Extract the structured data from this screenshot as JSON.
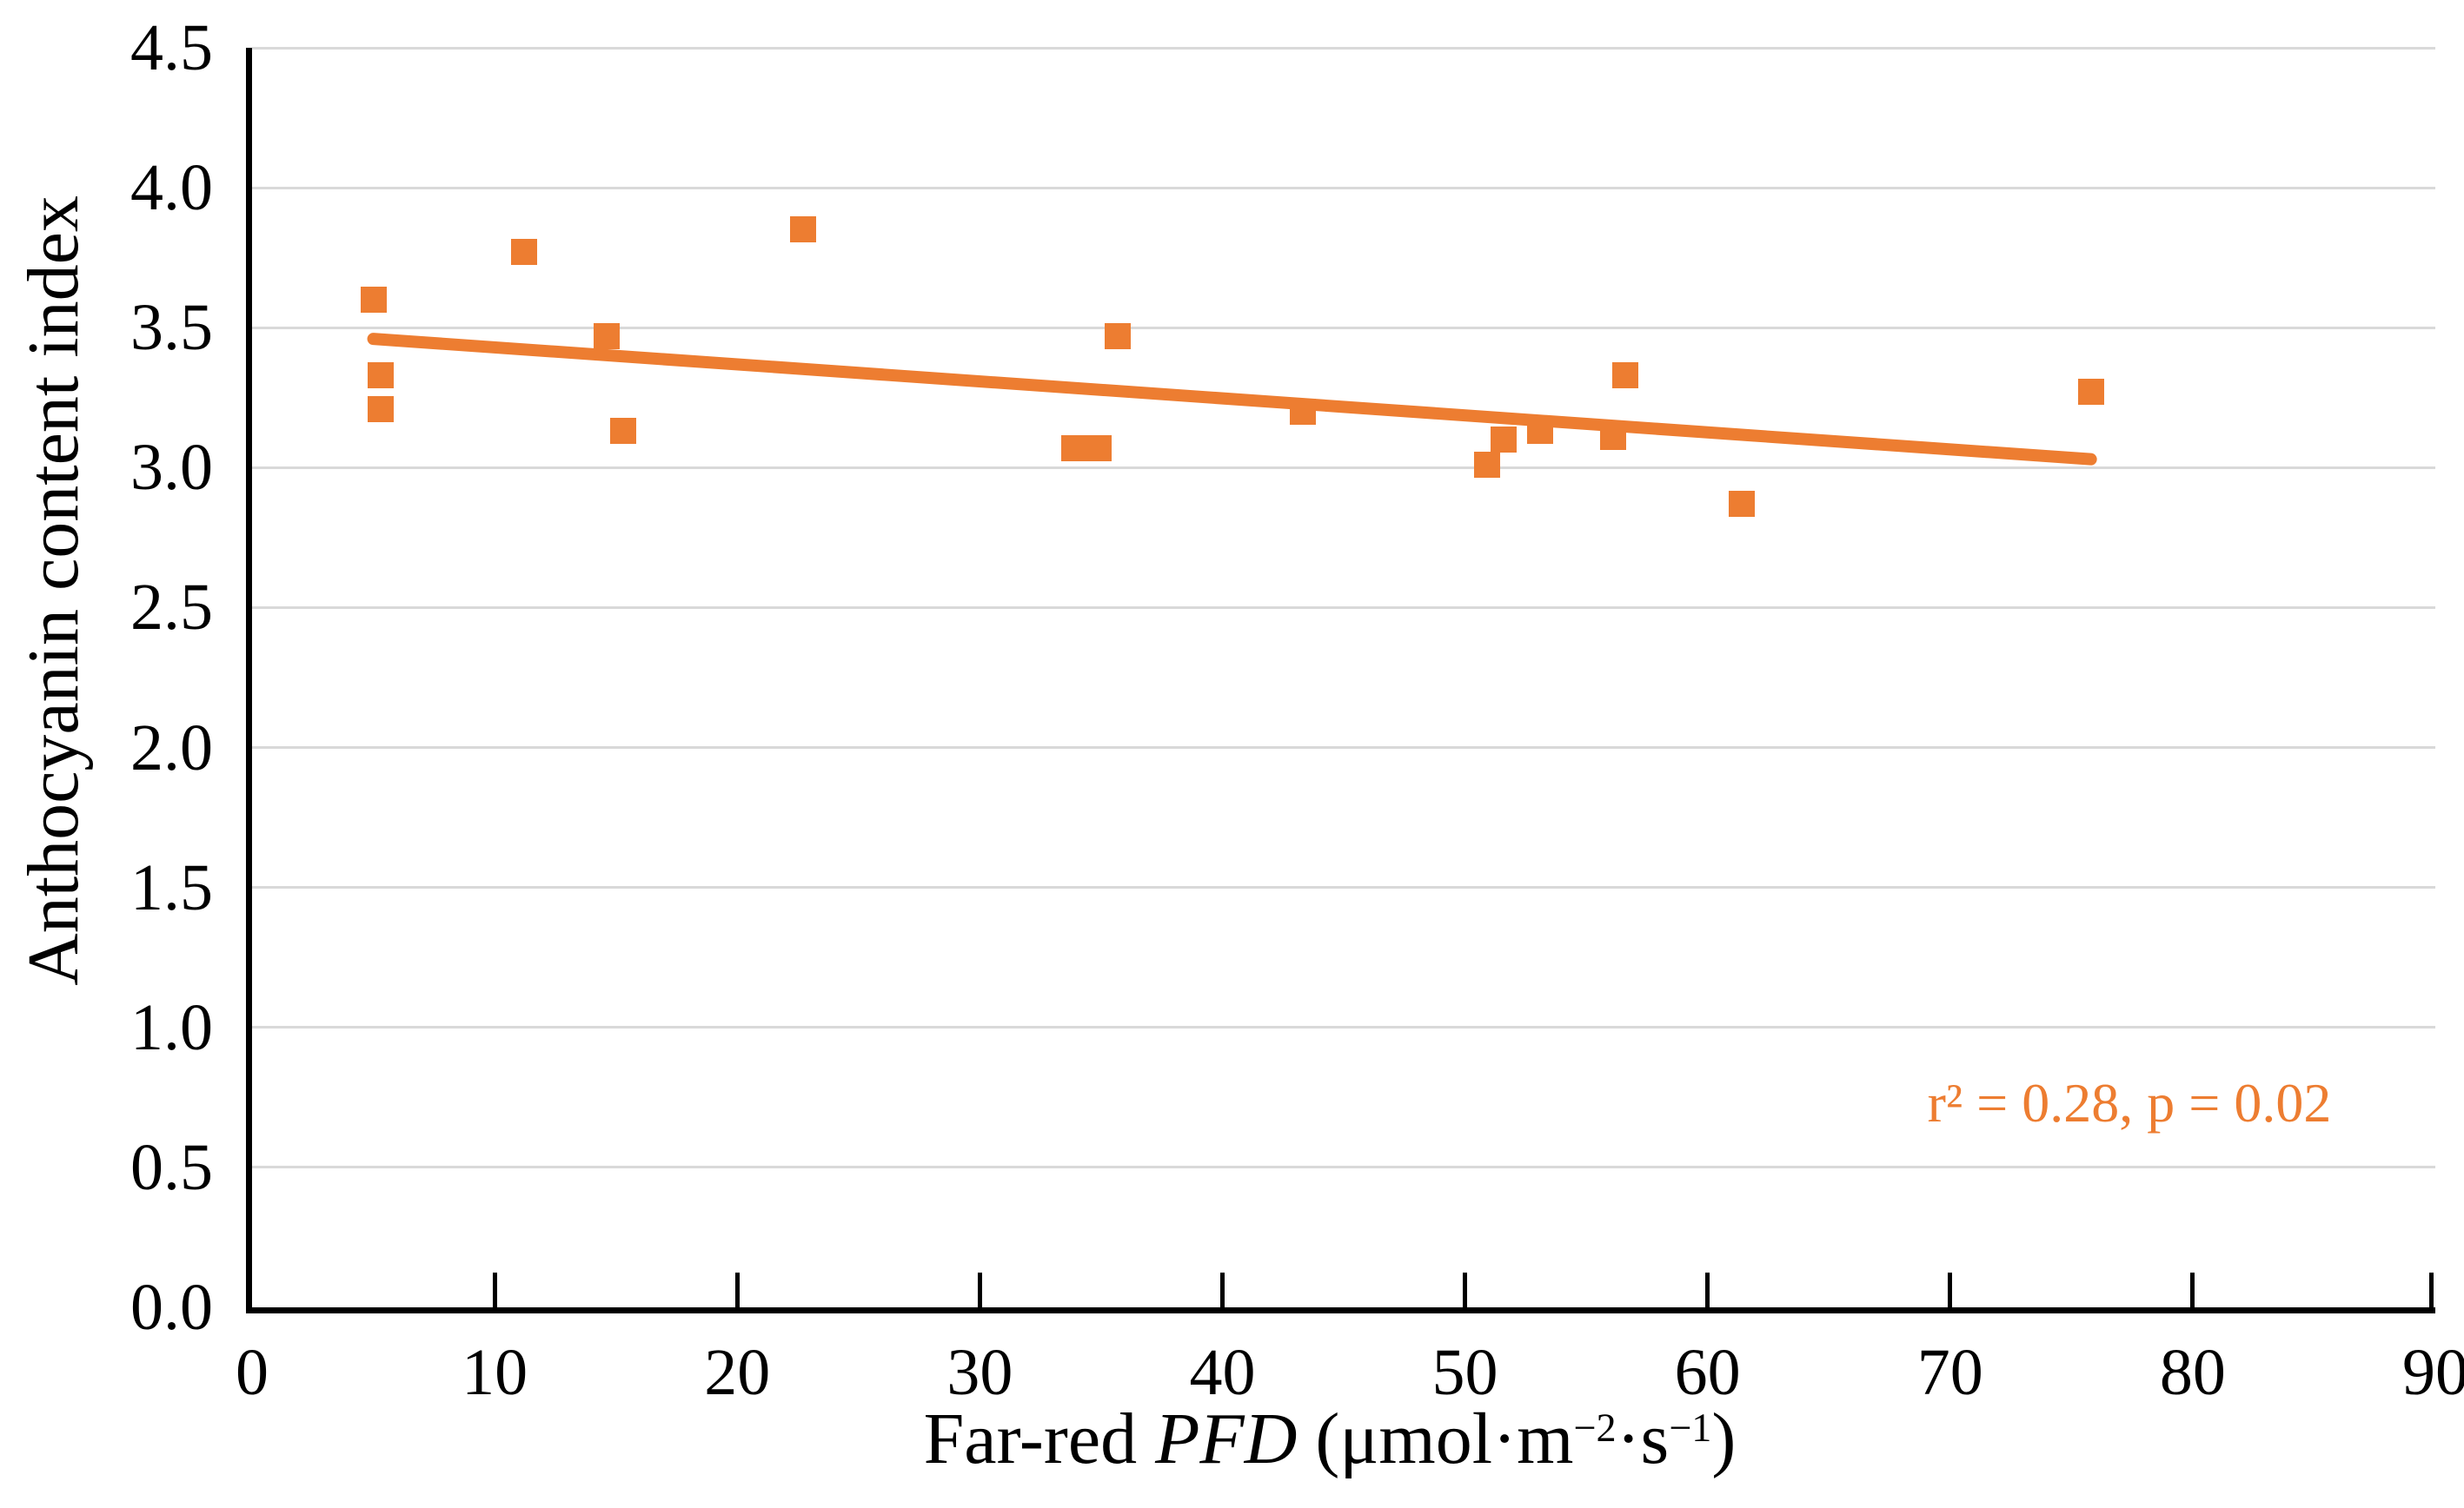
{
  "figure": {
    "background_color": "#ffffff",
    "accent_color": "#ED7D31",
    "gridline_color": "#D9D9D9",
    "axis_color": "#000000",
    "y_title": "Anthocyanin  content  index",
    "x_title_parts": {
      "prefix": "Far-red ",
      "italic": "PFD",
      "unit_open": " (μmol·m",
      "sup_1": "−2",
      "unit_mid": "·s",
      "sup_2": "−1",
      "unit_close": ")"
    },
    "annotation_text": "r² = 0.28, p = 0.02"
  },
  "chart_data": {
    "type": "scatter",
    "title": "",
    "xlabel": "Far-red PFD (μmol·m−2·s−1)",
    "ylabel": "Anthocyanin content index",
    "xlim": [
      0,
      90
    ],
    "ylim": [
      0,
      4.5
    ],
    "x_ticks": [
      0,
      10,
      20,
      30,
      40,
      50,
      60,
      70,
      80,
      90
    ],
    "y_ticks": [
      "0.0",
      "0.5",
      "1.0",
      "1.5",
      "2.0",
      "2.5",
      "3.0",
      "3.5",
      "4.0",
      "4.5"
    ],
    "grid": "horizontal-only",
    "legend": "none",
    "marker_shape": "square",
    "marker_color": "#ED7D31",
    "points": [
      {
        "x": 5.0,
        "y": 3.6
      },
      {
        "x": 5.3,
        "y": 3.33
      },
      {
        "x": 5.3,
        "y": 3.21
      },
      {
        "x": 11.2,
        "y": 3.77
      },
      {
        "x": 14.6,
        "y": 3.47
      },
      {
        "x": 15.3,
        "y": 3.13
      },
      {
        "x": 22.7,
        "y": 3.85
      },
      {
        "x": 33.9,
        "y": 3.07
      },
      {
        "x": 34.9,
        "y": 3.07
      },
      {
        "x": 35.7,
        "y": 3.47
      },
      {
        "x": 43.3,
        "y": 3.2
      },
      {
        "x": 50.9,
        "y": 3.01
      },
      {
        "x": 51.6,
        "y": 3.1
      },
      {
        "x": 53.1,
        "y": 3.13
      },
      {
        "x": 56.1,
        "y": 3.11
      },
      {
        "x": 56.6,
        "y": 3.33
      },
      {
        "x": 61.4,
        "y": 2.87
      },
      {
        "x": 75.8,
        "y": 3.27
      }
    ],
    "trendline": {
      "x1": 5.0,
      "y1": 3.46,
      "x2": 75.8,
      "y2": 3.03,
      "color": "#ED7D31"
    },
    "annotation": {
      "text": "r² = 0.28, p = 0.02",
      "r_squared": 0.28,
      "p_value": 0.02
    }
  }
}
